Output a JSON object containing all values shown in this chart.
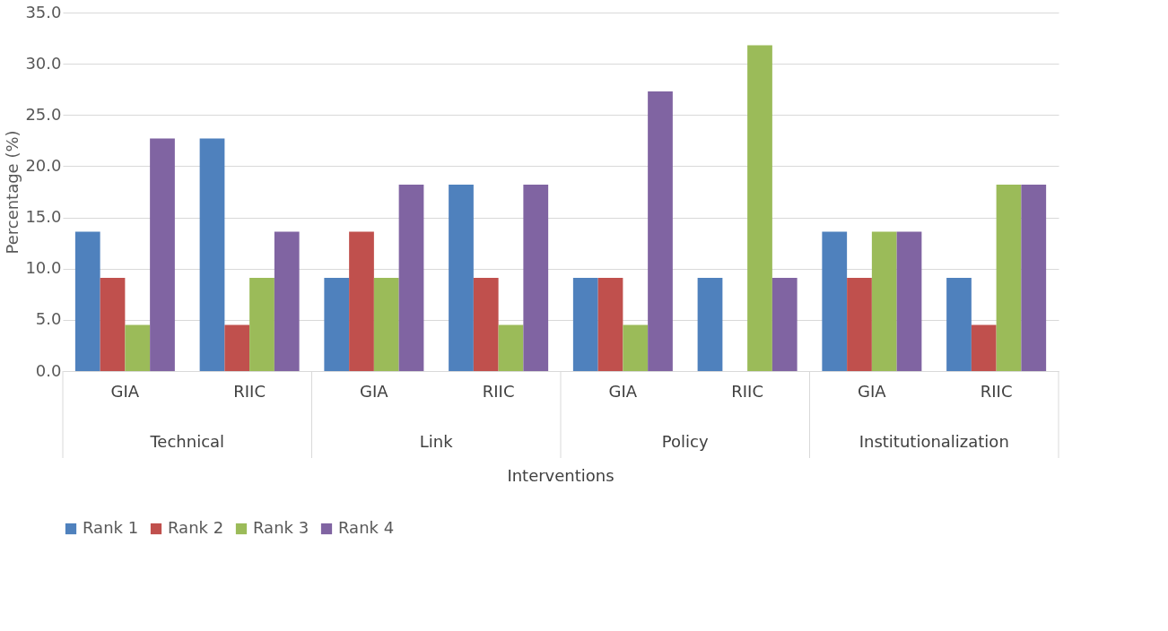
{
  "chart_data": {
    "type": "bar",
    "xlabel": "Interventions",
    "ylabel": "Percentage (%)",
    "categories": [
      "GIA",
      "RIIC",
      "GIA",
      "RIIC",
      "GIA",
      "RIIC",
      "GIA",
      "RIIC"
    ],
    "annotations": [
      "Technical",
      "Link",
      "Policy",
      "Institutionalization"
    ],
    "series": [
      {
        "name": "Rank 1",
        "color": "#4f81bd",
        "values": [
          13.6,
          22.7,
          9.1,
          18.2,
          9.1,
          9.1,
          13.6,
          9.1
        ]
      },
      {
        "name": "Rank 2",
        "color": "#c0504d",
        "values": [
          9.1,
          4.5,
          13.6,
          9.1,
          9.1,
          0,
          9.1,
          4.5
        ]
      },
      {
        "name": "Rank 3",
        "color": "#9bbb59",
        "values": [
          4.5,
          9.1,
          9.1,
          4.5,
          4.5,
          31.8,
          13.6,
          18.2
        ]
      },
      {
        "name": "Rank 4",
        "color": "#8064a2",
        "values": [
          22.7,
          13.6,
          18.2,
          18.2,
          27.3,
          9.1,
          13.6,
          18.2
        ]
      }
    ],
    "ylim": [
      0,
      35
    ],
    "yticks": [
      {
        "value": 0,
        "label": "0.0"
      },
      {
        "value": 5,
        "label": "5.0"
      },
      {
        "value": 10,
        "label": "10.0"
      },
      {
        "value": 15,
        "label": "15.0"
      },
      {
        "value": 20,
        "label": "20.0"
      },
      {
        "value": 25,
        "label": "25.0"
      },
      {
        "value": 30,
        "label": "30.0"
      },
      {
        "value": 35,
        "label": "35.0"
      }
    ],
    "grid": "y",
    "legend": "bottom"
  }
}
